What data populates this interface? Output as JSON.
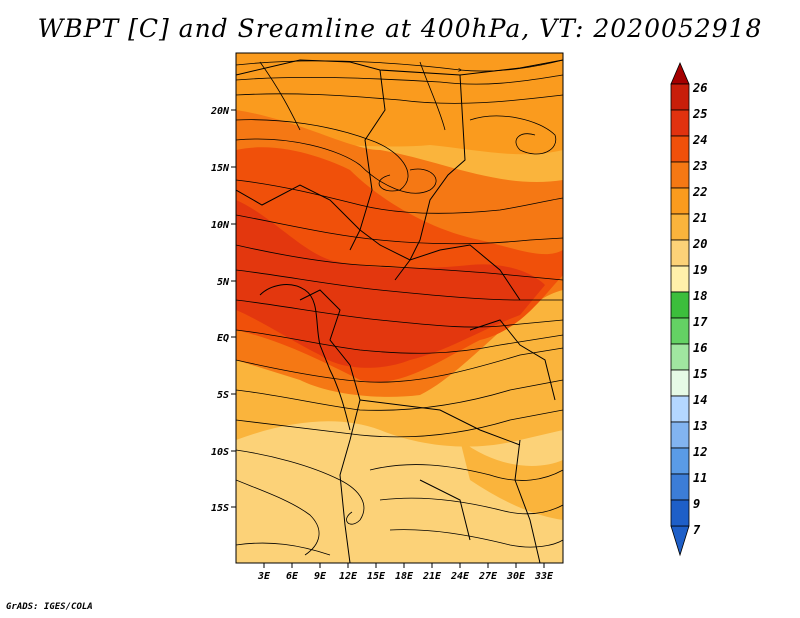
{
  "title": "WBPT [C] and Sreamline at 400hPa, VT: 2020052918",
  "credit": "GrADS: IGES/COLA",
  "map": {
    "lon_labels": [
      "3E",
      "6E",
      "9E",
      "12E",
      "15E",
      "18E",
      "21E",
      "24E",
      "27E",
      "30E",
      "33E"
    ],
    "lat_labels": [
      "20N",
      "15N",
      "10N",
      "5N",
      "EQ",
      "5S",
      "10S",
      "15S"
    ],
    "lon_range": [
      0,
      35
    ],
    "lat_range": [
      -20,
      24
    ]
  },
  "colorbar": {
    "levels": [
      "26",
      "25",
      "24",
      "23",
      "22",
      "21",
      "20",
      "19",
      "18",
      "17",
      "16",
      "15",
      "14",
      "13",
      "12",
      "11",
      "9",
      "7"
    ],
    "colors": [
      "#a50000",
      "#c81e0a",
      "#e1320f",
      "#f0500a",
      "#f57814",
      "#fa9b1e",
      "#fab43c",
      "#fcd278",
      "#fff0aa",
      "#3cbe3c",
      "#64d264",
      "#a0e6a0",
      "#e6fae6",
      "#b4d7ff",
      "#82b4f0",
      "#5a9be6",
      "#3c7dd7",
      "#1e5fc8"
    ]
  }
}
